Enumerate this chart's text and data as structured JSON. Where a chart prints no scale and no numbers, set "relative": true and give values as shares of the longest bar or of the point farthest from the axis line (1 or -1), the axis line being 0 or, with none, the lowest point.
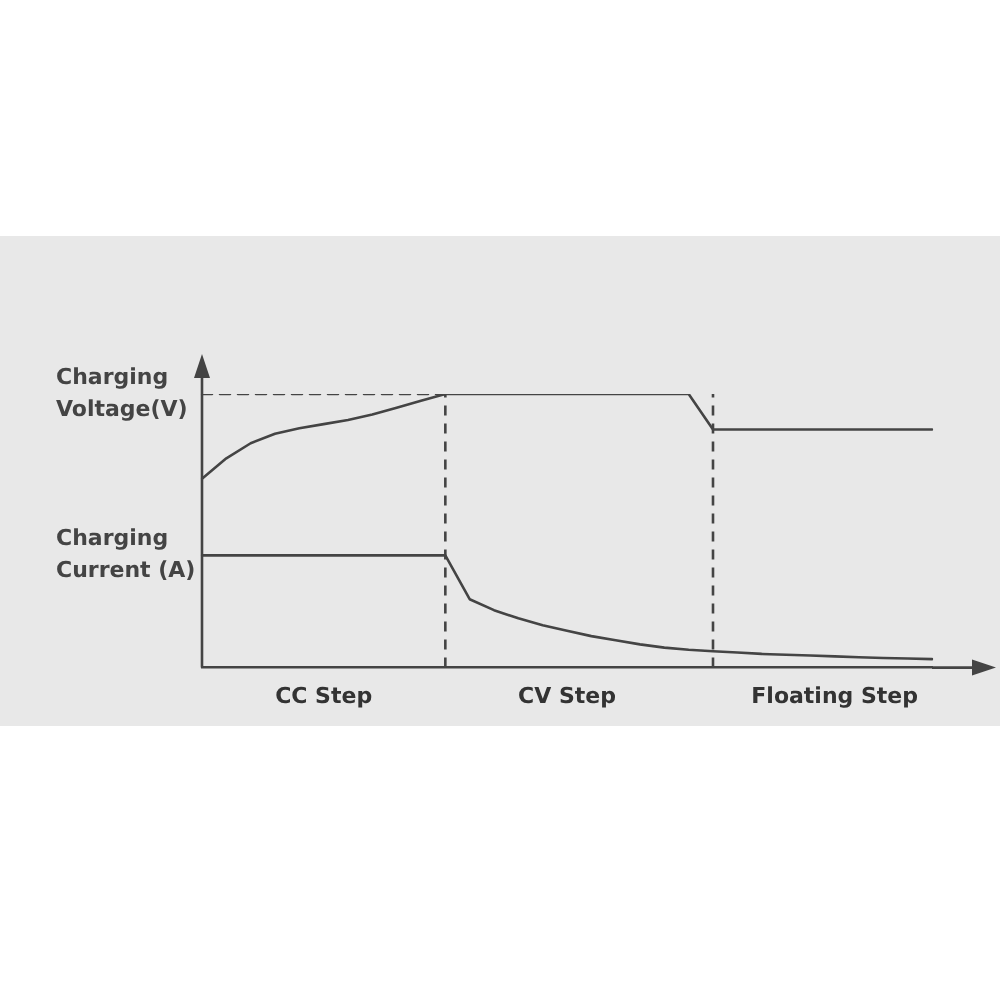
{
  "chart_data": {
    "type": "line",
    "relative": true,
    "tick_labels": "x",
    "legend": "left",
    "marker": "none",
    "categories": [
      null,
      null,
      null,
      null,
      null,
      "CC Step",
      null,
      null,
      null,
      null,
      null,
      null,
      null,
      null,
      null,
      "CV Step",
      null,
      null,
      null,
      null,
      null,
      null,
      null,
      null,
      null,
      null,
      "Floating Step",
      null,
      null,
      null,
      null
    ],
    "series": [
      {
        "name": "Charging Voltage(V)",
        "color": "#444444",
        "values": [
          0.69,
          0.765,
          0.82,
          0.855,
          0.875,
          0.89,
          0.905,
          0.925,
          0.95,
          0.975,
          1,
          1,
          1,
          1,
          1,
          1,
          1,
          1,
          1,
          1,
          1,
          0.87,
          0.87,
          0.87,
          0.87,
          0.87,
          0.87,
          0.87,
          0.87,
          0.87,
          0.87
        ]
      },
      {
        "name": "Charging Current (A)",
        "color": "#444444",
        "values": [
          0.41,
          0.41,
          0.41,
          0.41,
          0.41,
          0.41,
          0.41,
          0.41,
          0.41,
          0.41,
          0.41,
          0.25,
          0.21,
          0.18,
          0.155,
          0.135,
          0.115,
          0.1,
          0.085,
          0.073,
          0.065,
          0.06,
          0.055,
          0.05,
          0.047,
          0.044,
          0.041,
          0.038,
          0.035,
          0.033,
          0.031
        ]
      },
      {
        "color": "#444444",
        "line_style": "dashed",
        "values": [
          1,
          1,
          1,
          1,
          1,
          1,
          1,
          1,
          1,
          1,
          1,
          null,
          null,
          null,
          null,
          null,
          null,
          null,
          null,
          null,
          null,
          null,
          null,
          null,
          null,
          null,
          null,
          null,
          null,
          null,
          null
        ]
      }
    ]
  }
}
